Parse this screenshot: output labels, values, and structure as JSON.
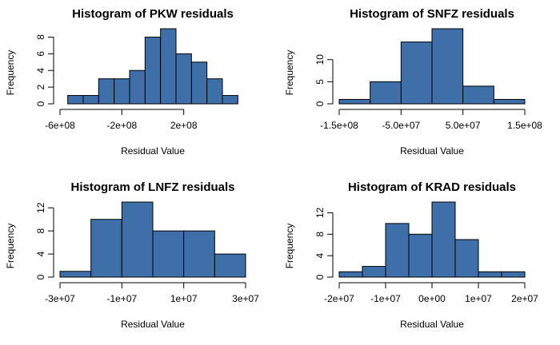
{
  "chart_data": [
    {
      "type": "histogram",
      "title": "Histogram of PKW residuals",
      "xlabel": "Residual Value",
      "ylabel": "Frequency",
      "bins": [
        -550000000,
        -450000000,
        -350000000,
        -250000000,
        -150000000,
        -50000000,
        50000000,
        150000000,
        250000000,
        350000000,
        450000000,
        550000000
      ],
      "values": [
        1,
        1,
        3,
        3,
        4,
        8,
        9,
        6,
        5,
        3,
        1
      ],
      "color": "#3f6fa8",
      "xlim": [
        -600000000,
        600000000
      ],
      "xticks": [
        {
          "value": -600000000,
          "label": "-6e+08"
        },
        {
          "value": -200000000,
          "label": "-2e+08"
        },
        {
          "value": 200000000,
          "label": "2e+08"
        }
      ],
      "ylim": [
        0,
        9
      ],
      "yticks": [
        0,
        2,
        4,
        6,
        8
      ]
    },
    {
      "type": "histogram",
      "title": "Histogram of SNFZ residuals",
      "xlabel": "Residual Value",
      "ylabel": "Frequency",
      "bins": [
        -150000000,
        -100000000,
        -50000000,
        0,
        50000000,
        100000000,
        150000000
      ],
      "values": [
        1,
        5,
        14,
        17,
        4,
        1
      ],
      "color": "#3f6fa8",
      "xlim": [
        -150000000,
        150000000
      ],
      "xticks": [
        {
          "value": -150000000,
          "label": "-1.5e+08"
        },
        {
          "value": -50000000,
          "label": "-5.0e+07"
        },
        {
          "value": 50000000,
          "label": "5.0e+07"
        },
        {
          "value": 150000000,
          "label": "1.5e+08"
        }
      ],
      "ylim": [
        0,
        17
      ],
      "yticks": [
        0,
        5,
        10
      ]
    },
    {
      "type": "histogram",
      "title": "Histogram of LNFZ residuals",
      "xlabel": "Residual Value",
      "ylabel": "Frequency",
      "bins": [
        -30000000,
        -20000000,
        -10000000,
        0,
        10000000,
        20000000,
        30000000
      ],
      "values": [
        1,
        10,
        13,
        8,
        8,
        4
      ],
      "color": "#3f6fa8",
      "xlim": [
        -30000000,
        30000000
      ],
      "xticks": [
        {
          "value": -30000000,
          "label": "-3e+07"
        },
        {
          "value": -10000000,
          "label": "-1e+07"
        },
        {
          "value": 10000000,
          "label": "1e+07"
        },
        {
          "value": 30000000,
          "label": "3e+07"
        }
      ],
      "ylim": [
        0,
        13
      ],
      "yticks": [
        0,
        4,
        8,
        12
      ]
    },
    {
      "type": "histogram",
      "title": "Histogram of KRAD residuals",
      "xlabel": "Residual Value",
      "ylabel": "Frequency",
      "bins": [
        -20000000,
        -15000000,
        -10000000,
        -5000000,
        0,
        5000000,
        10000000,
        15000000,
        20000000
      ],
      "values": [
        1,
        2,
        10,
        8,
        14,
        7,
        1,
        1
      ],
      "color": "#3f6fa8",
      "xlim": [
        -20000000,
        20000000
      ],
      "xticks": [
        {
          "value": -20000000,
          "label": "-2e+07"
        },
        {
          "value": -10000000,
          "label": "-1e+07"
        },
        {
          "value": 0,
          "label": "0e+00"
        },
        {
          "value": 10000000,
          "label": "1e+07"
        },
        {
          "value": 20000000,
          "label": "2e+07"
        }
      ],
      "ylim": [
        0,
        14
      ],
      "yticks": [
        0,
        4,
        8,
        12
      ]
    }
  ]
}
